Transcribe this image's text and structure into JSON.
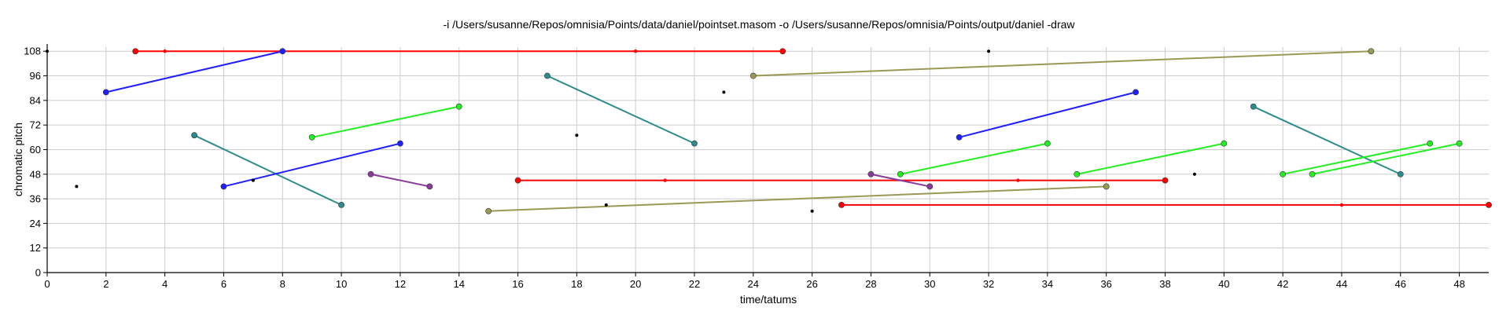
{
  "chart_data": {
    "type": "scatter",
    "title": "-i /Users/susanne/Repos/omnisia/Points/data/daniel/pointset.masom -o /Users/susanne/Repos/omnisia/Points/output/daniel -draw",
    "xlabel": "time/tatums",
    "ylabel": "chromatic pitch",
    "xlim": [
      0,
      49
    ],
    "ylim": [
      0,
      110
    ],
    "xticks": [
      0,
      2,
      4,
      6,
      8,
      10,
      12,
      14,
      16,
      18,
      20,
      22,
      24,
      26,
      28,
      30,
      32,
      34,
      36,
      38,
      40,
      42,
      44,
      46,
      48
    ],
    "yticks": [
      0,
      12,
      24,
      36,
      48,
      60,
      72,
      84,
      96,
      108
    ],
    "grid": true,
    "colors": {
      "red": "#ff0000",
      "blue": "#1f1fff",
      "teal": "#2e8b8b",
      "green": "#22ee22",
      "olive": "#999955",
      "purple": "#8a3a9a",
      "black": "#000000"
    },
    "series": [
      {
        "color": "red",
        "points": [
          {
            "x": 3,
            "y": 108
          },
          {
            "x": 25,
            "y": 108
          }
        ]
      },
      {
        "color": "blue",
        "points": [
          {
            "x": 2,
            "y": 88
          },
          {
            "x": 8,
            "y": 108
          }
        ]
      },
      {
        "color": "teal",
        "points": [
          {
            "x": 17,
            "y": 96
          },
          {
            "x": 22,
            "y": 63
          }
        ]
      },
      {
        "color": "olive",
        "points": [
          {
            "x": 24,
            "y": 96
          },
          {
            "x": 45,
            "y": 108
          }
        ]
      },
      {
        "color": "green",
        "points": [
          {
            "x": 9,
            "y": 66
          },
          {
            "x": 14,
            "y": 81
          }
        ]
      },
      {
        "color": "teal",
        "points": [
          {
            "x": 5,
            "y": 67
          },
          {
            "x": 10,
            "y": 33
          }
        ]
      },
      {
        "color": "blue",
        "points": [
          {
            "x": 6,
            "y": 42
          },
          {
            "x": 12,
            "y": 63
          }
        ]
      },
      {
        "color": "purple",
        "points": [
          {
            "x": 11,
            "y": 48
          },
          {
            "x": 13,
            "y": 42
          }
        ]
      },
      {
        "color": "red",
        "points": [
          {
            "x": 16,
            "y": 45
          },
          {
            "x": 38,
            "y": 45
          }
        ]
      },
      {
        "color": "olive",
        "points": [
          {
            "x": 15,
            "y": 30
          },
          {
            "x": 36,
            "y": 42
          }
        ]
      },
      {
        "color": "blue",
        "points": [
          {
            "x": 31,
            "y": 66
          },
          {
            "x": 37,
            "y": 88
          }
        ]
      },
      {
        "color": "green",
        "points": [
          {
            "x": 29,
            "y": 48
          },
          {
            "x": 34,
            "y": 63
          }
        ]
      },
      {
        "color": "green",
        "points": [
          {
            "x": 35,
            "y": 48
          },
          {
            "x": 40,
            "y": 63
          }
        ]
      },
      {
        "color": "purple",
        "points": [
          {
            "x": 28,
            "y": 48
          },
          {
            "x": 30,
            "y": 42
          }
        ]
      },
      {
        "color": "teal",
        "points": [
          {
            "x": 41,
            "y": 81
          },
          {
            "x": 46,
            "y": 48
          }
        ]
      },
      {
        "color": "green",
        "points": [
          {
            "x": 42,
            "y": 48
          },
          {
            "x": 47,
            "y": 63
          }
        ]
      },
      {
        "color": "green",
        "points": [
          {
            "x": 43,
            "y": 48
          },
          {
            "x": 48,
            "y": 63
          }
        ]
      },
      {
        "color": "red",
        "points": [
          {
            "x": 27,
            "y": 33
          },
          {
            "x": 49,
            "y": 33
          }
        ]
      }
    ],
    "extra_points": [
      {
        "x": 0,
        "y": 108,
        "color": "black"
      },
      {
        "x": 1,
        "y": 42,
        "color": "black"
      },
      {
        "x": 4,
        "y": 108,
        "color": "red"
      },
      {
        "x": 7,
        "y": 45,
        "color": "black"
      },
      {
        "x": 18,
        "y": 67,
        "color": "black"
      },
      {
        "x": 19,
        "y": 33,
        "color": "black"
      },
      {
        "x": 20,
        "y": 108,
        "color": "red"
      },
      {
        "x": 21,
        "y": 45,
        "color": "red"
      },
      {
        "x": 23,
        "y": 88,
        "color": "black"
      },
      {
        "x": 26,
        "y": 30,
        "color": "black"
      },
      {
        "x": 32,
        "y": 108,
        "color": "black"
      },
      {
        "x": 33,
        "y": 45,
        "color": "red"
      },
      {
        "x": 39,
        "y": 48,
        "color": "black"
      },
      {
        "x": 44,
        "y": 33,
        "color": "red"
      }
    ]
  }
}
